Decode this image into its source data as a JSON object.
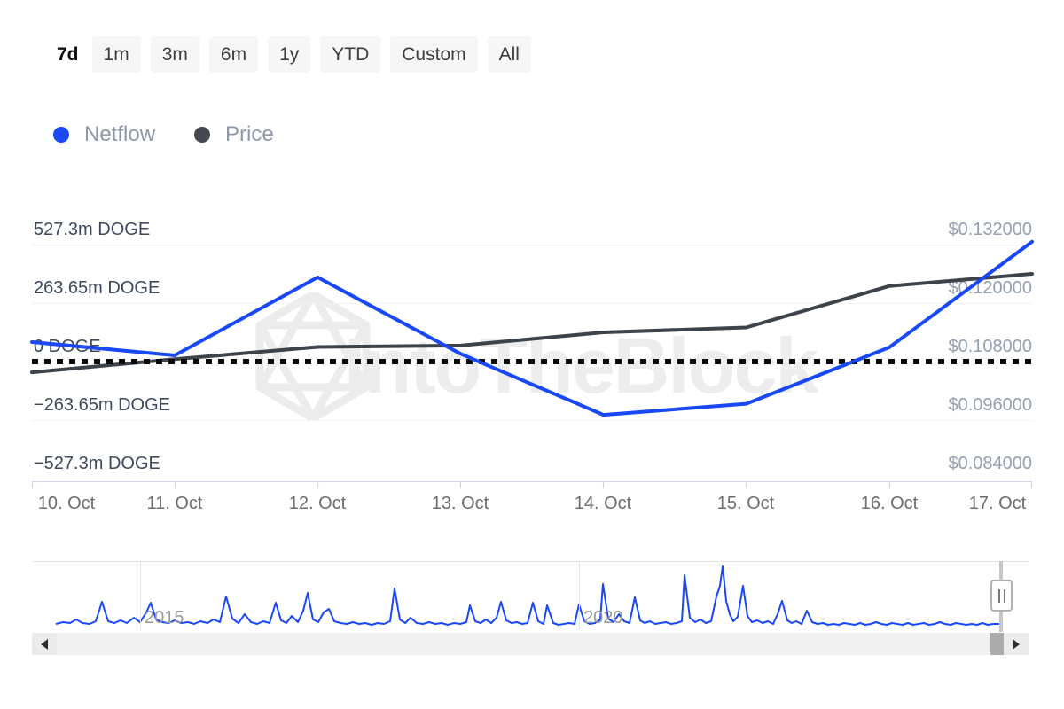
{
  "toolbar": {
    "ranges": [
      {
        "label": "7d",
        "selected": true
      },
      {
        "label": "1m",
        "selected": false
      },
      {
        "label": "3m",
        "selected": false
      },
      {
        "label": "6m",
        "selected": false
      },
      {
        "label": "1y",
        "selected": false
      },
      {
        "label": "YTD",
        "selected": false
      },
      {
        "label": "Custom",
        "selected": false
      },
      {
        "label": "All",
        "selected": false
      }
    ]
  },
  "legend": {
    "items": [
      {
        "label": "Netflow",
        "color": "#1948f7"
      },
      {
        "label": "Price",
        "color": "#42484e"
      }
    ]
  },
  "watermark": {
    "text": "IntoTheBlock"
  },
  "chart_data": {
    "type": "line",
    "categories": [
      "10. Oct",
      "11. Oct",
      "12. Oct",
      "13. Oct",
      "14. Oct",
      "15. Oct",
      "16. Oct",
      "17. Oct"
    ],
    "series": [
      {
        "name": "Netflow",
        "unit": "m DOGE",
        "color": "#1948f7",
        "values": [
          88,
          28,
          380,
          35,
          -240,
          -190,
          64,
          540
        ]
      },
      {
        "name": "Price",
        "unit": "USD",
        "color": "#3c434b",
        "values": [
          0.1058,
          0.1085,
          0.111,
          0.1113,
          0.114,
          0.115,
          0.1235,
          0.126
        ]
      }
    ],
    "left_axis": {
      "unit": "DOGE",
      "min": -527.3,
      "max": 527.3,
      "labels": [
        "527.3m DOGE",
        "263.65m DOGE",
        "0 DOGE",
        "−263.65m DOGE",
        "−527.3m DOGE"
      ]
    },
    "right_axis": {
      "unit": "USD",
      "min": 0.084,
      "max": 0.132,
      "labels": [
        "$0.132000",
        "$0.120000",
        "$0.108000",
        "$0.096000",
        "$0.084000"
      ]
    },
    "zero_line": {
      "value": 0,
      "style": "dotted",
      "color": "#0b0b0b"
    },
    "grid": true,
    "legend_position": "top-left"
  },
  "navigator": {
    "year_labels": [
      {
        "label": "2015"
      },
      {
        "label": "2020"
      }
    ],
    "points": [
      [
        27,
        71
      ],
      [
        35,
        69
      ],
      [
        43,
        70
      ],
      [
        50,
        66
      ],
      [
        57,
        70
      ],
      [
        65,
        71
      ],
      [
        72,
        68
      ],
      [
        79,
        46
      ],
      [
        86,
        68
      ],
      [
        93,
        70
      ],
      [
        100,
        67
      ],
      [
        107,
        70
      ],
      [
        115,
        64
      ],
      [
        122,
        69
      ],
      [
        129,
        58
      ],
      [
        134,
        47
      ],
      [
        140,
        66
      ],
      [
        147,
        69
      ],
      [
        154,
        70
      ],
      [
        161,
        67
      ],
      [
        168,
        70
      ],
      [
        176,
        69
      ],
      [
        183,
        71
      ],
      [
        190,
        68
      ],
      [
        198,
        70
      ],
      [
        205,
        66
      ],
      [
        212,
        69
      ],
      [
        219,
        40
      ],
      [
        226,
        65
      ],
      [
        233,
        70
      ],
      [
        240,
        60
      ],
      [
        247,
        69
      ],
      [
        254,
        71
      ],
      [
        261,
        68
      ],
      [
        268,
        70
      ],
      [
        275,
        47
      ],
      [
        281,
        67
      ],
      [
        287,
        70
      ],
      [
        293,
        62
      ],
      [
        300,
        69
      ],
      [
        306,
        56
      ],
      [
        311,
        36
      ],
      [
        317,
        66
      ],
      [
        323,
        69
      ],
      [
        329,
        58
      ],
      [
        335,
        54
      ],
      [
        341,
        68
      ],
      [
        348,
        70
      ],
      [
        355,
        71
      ],
      [
        362,
        69
      ],
      [
        369,
        71
      ],
      [
        376,
        70
      ],
      [
        383,
        72
      ],
      [
        390,
        70
      ],
      [
        397,
        71
      ],
      [
        404,
        68
      ],
      [
        409,
        31
      ],
      [
        415,
        66
      ],
      [
        421,
        70
      ],
      [
        427,
        64
      ],
      [
        434,
        70
      ],
      [
        441,
        71
      ],
      [
        448,
        69
      ],
      [
        455,
        71
      ],
      [
        462,
        70
      ],
      [
        469,
        72
      ],
      [
        476,
        70
      ],
      [
        483,
        71
      ],
      [
        490,
        69
      ],
      [
        494,
        50
      ],
      [
        500,
        68
      ],
      [
        506,
        70
      ],
      [
        512,
        66
      ],
      [
        518,
        70
      ],
      [
        524,
        64
      ],
      [
        529,
        46
      ],
      [
        535,
        67
      ],
      [
        541,
        70
      ],
      [
        547,
        69
      ],
      [
        553,
        71
      ],
      [
        559,
        70
      ],
      [
        565,
        47
      ],
      [
        571,
        68
      ],
      [
        577,
        71
      ],
      [
        581,
        50
      ],
      [
        588,
        70
      ],
      [
        594,
        72
      ],
      [
        600,
        71
      ],
      [
        606,
        70
      ],
      [
        612,
        71
      ],
      [
        617,
        49
      ],
      [
        623,
        68
      ],
      [
        629,
        71
      ],
      [
        635,
        70
      ],
      [
        641,
        66
      ],
      [
        644,
        26
      ],
      [
        650,
        65
      ],
      [
        656,
        69
      ],
      [
        662,
        60
      ],
      [
        668,
        68
      ],
      [
        674,
        70
      ],
      [
        680,
        41
      ],
      [
        686,
        67
      ],
      [
        691,
        70
      ],
      [
        697,
        68
      ],
      [
        703,
        71
      ],
      [
        709,
        70
      ],
      [
        715,
        69
      ],
      [
        721,
        71
      ],
      [
        727,
        70
      ],
      [
        733,
        68
      ],
      [
        736,
        16
      ],
      [
        742,
        64
      ],
      [
        748,
        69
      ],
      [
        754,
        66
      ],
      [
        760,
        70
      ],
      [
        766,
        68
      ],
      [
        772,
        40
      ],
      [
        776,
        28
      ],
      [
        779,
        6
      ],
      [
        783,
        45
      ],
      [
        787,
        60
      ],
      [
        791,
        68
      ],
      [
        796,
        63
      ],
      [
        802,
        28
      ],
      [
        807,
        62
      ],
      [
        812,
        69
      ],
      [
        818,
        67
      ],
      [
        824,
        70
      ],
      [
        830,
        68
      ],
      [
        836,
        71
      ],
      [
        841,
        60
      ],
      [
        846,
        45
      ],
      [
        852,
        67
      ],
      [
        857,
        70
      ],
      [
        862,
        68
      ],
      [
        868,
        71
      ],
      [
        874,
        56
      ],
      [
        880,
        69
      ],
      [
        886,
        71
      ],
      [
        892,
        70
      ],
      [
        898,
        72
      ],
      [
        904,
        71
      ],
      [
        910,
        72
      ],
      [
        916,
        70
      ],
      [
        922,
        71
      ],
      [
        928,
        72
      ],
      [
        934,
        70
      ],
      [
        940,
        72
      ],
      [
        946,
        71
      ],
      [
        952,
        69
      ],
      [
        958,
        71
      ],
      [
        964,
        72
      ],
      [
        970,
        70
      ],
      [
        976,
        71
      ],
      [
        982,
        72
      ],
      [
        988,
        70
      ],
      [
        994,
        72
      ],
      [
        1000,
        71
      ],
      [
        1006,
        70
      ],
      [
        1012,
        72
      ],
      [
        1018,
        71
      ],
      [
        1024,
        69
      ],
      [
        1030,
        71
      ],
      [
        1036,
        72
      ],
      [
        1042,
        70
      ],
      [
        1048,
        71
      ],
      [
        1054,
        72
      ],
      [
        1060,
        71
      ],
      [
        1066,
        72
      ],
      [
        1072,
        70
      ],
      [
        1078,
        72
      ],
      [
        1084,
        71
      ],
      [
        1093,
        71
      ]
    ]
  }
}
